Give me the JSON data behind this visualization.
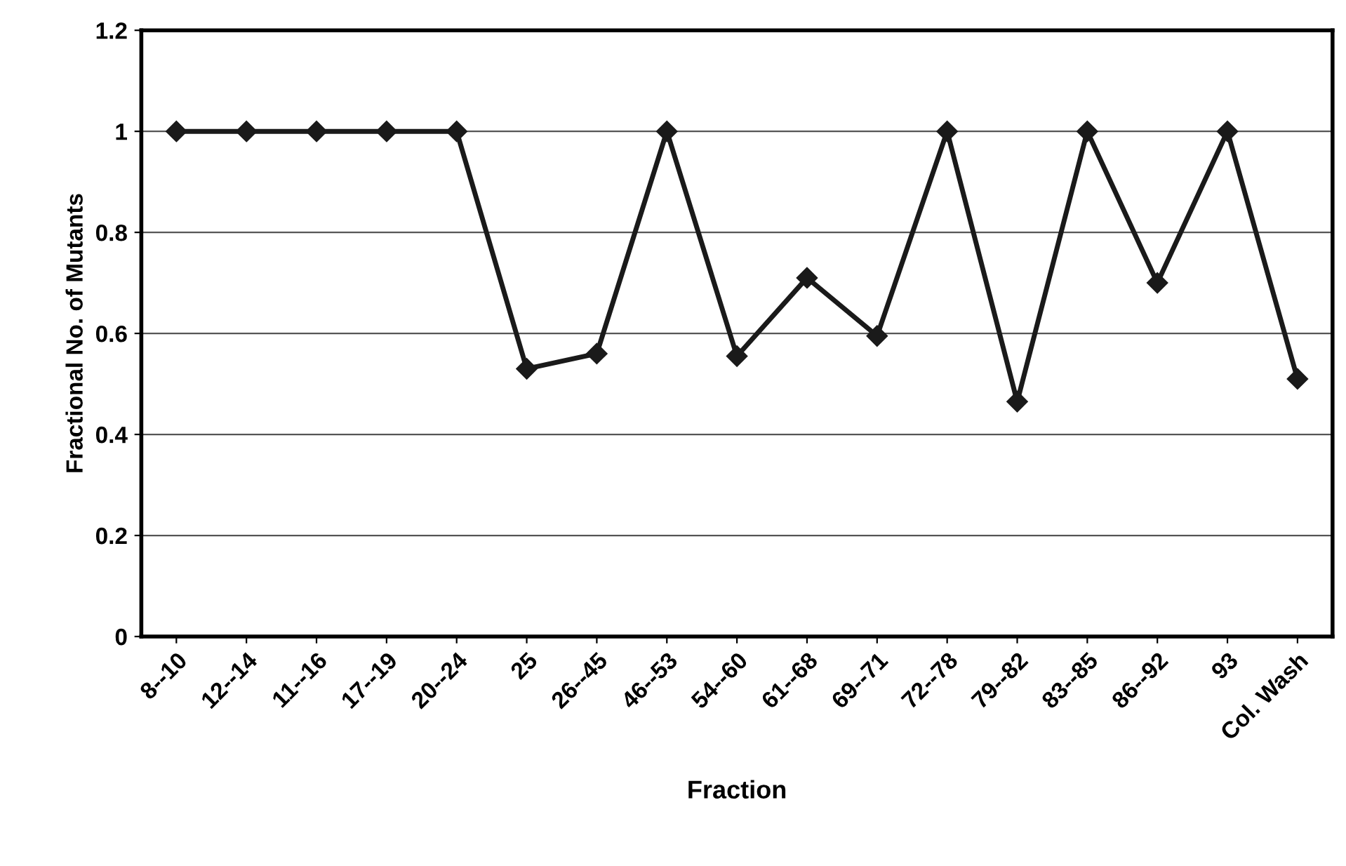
{
  "chart_data": {
    "type": "line",
    "xlabel": "Fraction",
    "ylabel": "Fractional No. of Mutants",
    "categories": [
      "8--10",
      "12--14",
      "11--16",
      "17--19",
      "20--24",
      "25",
      "26--45",
      "46--53",
      "54--60",
      "61--68",
      "69--71",
      "72--78",
      "79--82",
      "83--85",
      "86--92",
      "93",
      "Col. Wash"
    ],
    "series": [
      {
        "color": "#1a1a1a",
        "values": [
          1,
          1,
          1,
          1,
          1,
          0.53,
          0.56,
          1,
          0.555,
          0.71,
          0.595,
          1,
          0.465,
          1,
          0.7,
          1,
          0.51
        ]
      }
    ],
    "ylim": [
      0,
      1.2
    ],
    "yticks": [
      0,
      0.2,
      0.4,
      0.6,
      0.8,
      1,
      1.2
    ],
    "grid": "y",
    "marker": "diamond",
    "line_style": "solid",
    "legend": false
  }
}
